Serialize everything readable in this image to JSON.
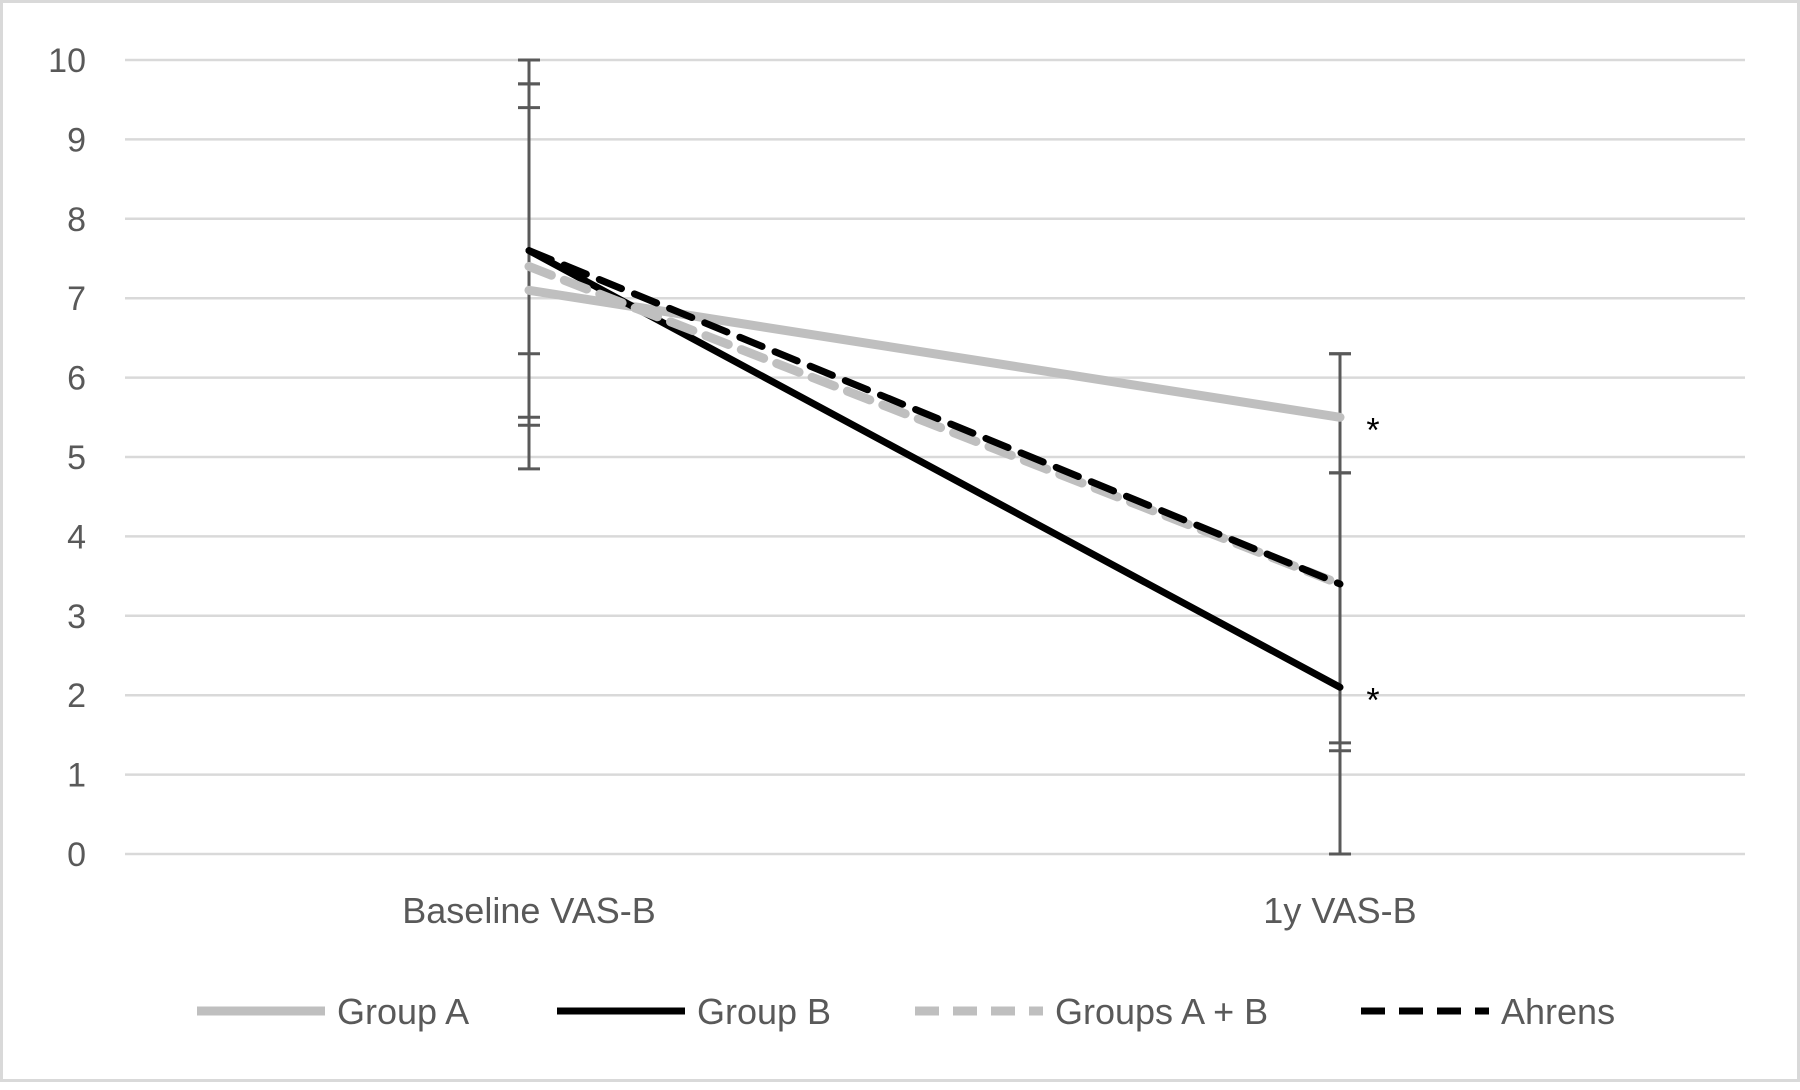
{
  "chart_data": {
    "type": "line",
    "title": "",
    "xlabel": "",
    "ylabel": "",
    "categories": [
      "Baseline VAS-B",
      "1y VAS-B"
    ],
    "ylim": [
      0,
      10
    ],
    "yticks": [
      "0",
      "1",
      "2",
      "3",
      "4",
      "5",
      "6",
      "7",
      "8",
      "9",
      "10"
    ],
    "grid": true,
    "legend_position": "bottom",
    "series": [
      {
        "name": "Group A",
        "values": [
          7.1,
          5.5
        ],
        "error_bars": [
          [
            5.5,
            9.7
          ],
          [
            4.8,
            6.3
          ]
        ],
        "color": "#bfbfbf",
        "style": "solid",
        "significance_marker": "*"
      },
      {
        "name": "Group B",
        "values": [
          7.6,
          2.1
        ],
        "error_bars": [
          [
            5.4,
            9.7
          ],
          [
            1.3,
            4.8
          ]
        ],
        "color": "#000000",
        "style": "solid",
        "significance_marker": "*"
      },
      {
        "name": "Groups A + B",
        "values": [
          7.4,
          3.4
        ],
        "error_bars": [
          [
            6.3,
            9.4
          ],
          [
            1.4,
            4.8
          ]
        ],
        "color": "#bfbfbf",
        "style": "dashed",
        "significance_marker": ""
      },
      {
        "name": "Ahrens",
        "values": [
          7.6,
          3.4
        ],
        "error_bars": [
          [
            4.85,
            10.0
          ],
          [
            0.0,
            6.3
          ]
        ],
        "color": "#000000",
        "style": "dashed",
        "significance_marker": ""
      }
    ]
  }
}
